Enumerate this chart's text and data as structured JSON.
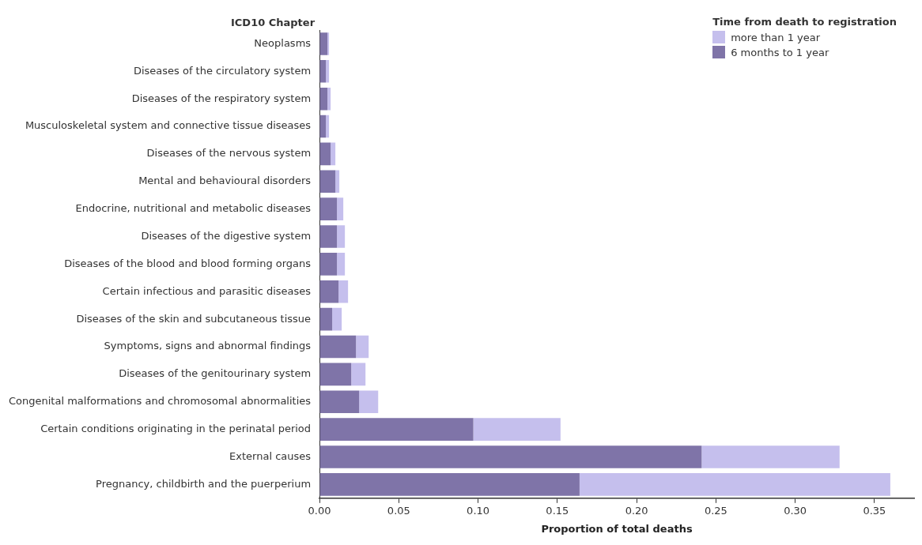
{
  "chart_data": {
    "type": "bar",
    "orientation": "horizontal",
    "stacked": true,
    "ylabel": "ICD10 Chapter",
    "xlabel": "Proportion of total deaths",
    "legend_title": "Time from death to registration",
    "legend": "top right",
    "categories": [
      "Neoplasms",
      "Diseases of the circulatory system",
      "Diseases of the respiratory system",
      "Musculoskeletal system and connective tissue diseases",
      "Diseases of the nervous system",
      "Mental and behavioural disorders",
      "Endocrine, nutritional and metabolic diseases",
      "Diseases of the digestive system",
      "Diseases of the blood and blood forming organs",
      "Certain infectious and parasitic diseases",
      "Diseases of the skin and subcutaneous tissue",
      "Symptoms, signs and abnormal findings",
      "Diseases of the genitourinary system",
      "Congenital malformations and chromosomal abnormalities",
      "Certain conditions originating in the perinatal period",
      "External causes",
      "Pregnancy, childbirth and the puerperium"
    ],
    "series": [
      {
        "name": "6 months to 1 year",
        "color": "#7f74a8",
        "values": [
          0.005,
          0.004,
          0.005,
          0.004,
          0.007,
          0.01,
          0.011,
          0.011,
          0.011,
          0.012,
          0.008,
          0.023,
          0.02,
          0.025,
          0.097,
          0.241,
          0.164
        ]
      },
      {
        "name": "more than 1 year",
        "color": "#c5bfed",
        "values": [
          0.001,
          0.002,
          0.002,
          0.002,
          0.003,
          0.0025,
          0.004,
          0.005,
          0.005,
          0.006,
          0.006,
          0.008,
          0.009,
          0.012,
          0.055,
          0.087,
          0.196
        ]
      }
    ],
    "xlim": [
      0,
      0.375
    ],
    "xticks": [
      {
        "value": 0,
        "label": "0.00"
      },
      {
        "value": 0.05,
        "label": "0.05"
      },
      {
        "value": 0.1,
        "label": "0.10"
      },
      {
        "value": 0.15,
        "label": "0.15"
      },
      {
        "value": 0.2,
        "label": "0.20"
      },
      {
        "value": 0.25,
        "label": "0.25"
      },
      {
        "value": 0.3,
        "label": "0.30"
      },
      {
        "value": 0.35,
        "label": "0.35"
      }
    ],
    "grid": false
  }
}
